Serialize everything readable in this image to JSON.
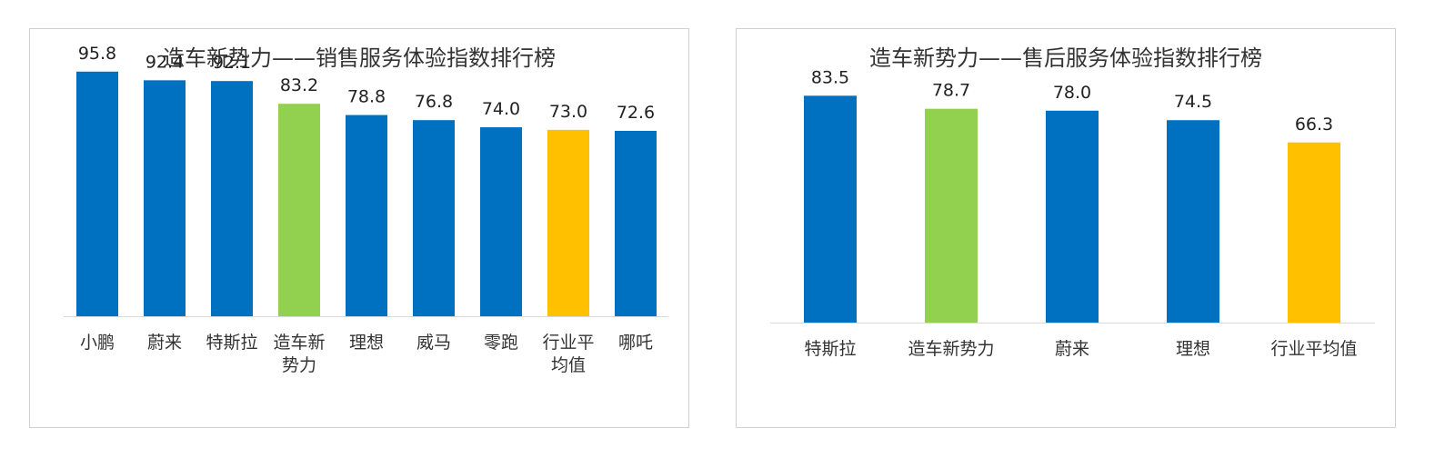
{
  "chart_data": [
    {
      "type": "bar",
      "title": "造车新势力——销售服务体验指数排行榜",
      "categories": [
        "小鹏",
        "蔚来",
        "特斯拉",
        "造车新势力",
        "理想",
        "威马",
        "零跑",
        "行业平均值",
        "哪吒"
      ],
      "category_lines": [
        [
          "小鹏"
        ],
        [
          "蔚来"
        ],
        [
          "特斯拉"
        ],
        [
          "造车新",
          "势力"
        ],
        [
          "理想"
        ],
        [
          "威马"
        ],
        [
          "零跑"
        ],
        [
          "行业平",
          "均值"
        ],
        [
          "哪吒"
        ]
      ],
      "values": [
        95.8,
        92.4,
        92.1,
        83.2,
        78.8,
        76.8,
        74.0,
        73.0,
        72.6
      ],
      "value_labels": [
        "95.8",
        "92.4",
        "92.1",
        "83.2",
        "78.8",
        "76.8",
        "74.0",
        "73.0",
        "72.6"
      ],
      "bar_colors": [
        "#0070c0",
        "#0070c0",
        "#0070c0",
        "#92d050",
        "#0070c0",
        "#0070c0",
        "#0070c0",
        "#ffc000",
        "#0070c0"
      ],
      "ylim": [
        0,
        100
      ],
      "grid": false,
      "legend": "none"
    },
    {
      "type": "bar",
      "title": "造车新势力——售后服务体验指数排行榜",
      "categories": [
        "特斯拉",
        "造车新势力",
        "蔚来",
        "理想",
        "行业平均值"
      ],
      "category_lines": [
        [
          "特斯拉"
        ],
        [
          "造车新势力"
        ],
        [
          "蔚来"
        ],
        [
          "理想"
        ],
        [
          "行业平均值"
        ]
      ],
      "values": [
        83.5,
        78.7,
        78.0,
        74.5,
        66.3
      ],
      "value_labels": [
        "83.5",
        "78.7",
        "78.0",
        "74.5",
        "66.3"
      ],
      "bar_colors": [
        "#0070c0",
        "#92d050",
        "#0070c0",
        "#0070c0",
        "#ffc000"
      ],
      "ylim": [
        0,
        100
      ],
      "grid": false,
      "legend": "none"
    }
  ],
  "colors": {
    "brand_blue": "#0070c0",
    "new_forces_green": "#92d050",
    "industry_avg_yellow": "#ffc000"
  }
}
